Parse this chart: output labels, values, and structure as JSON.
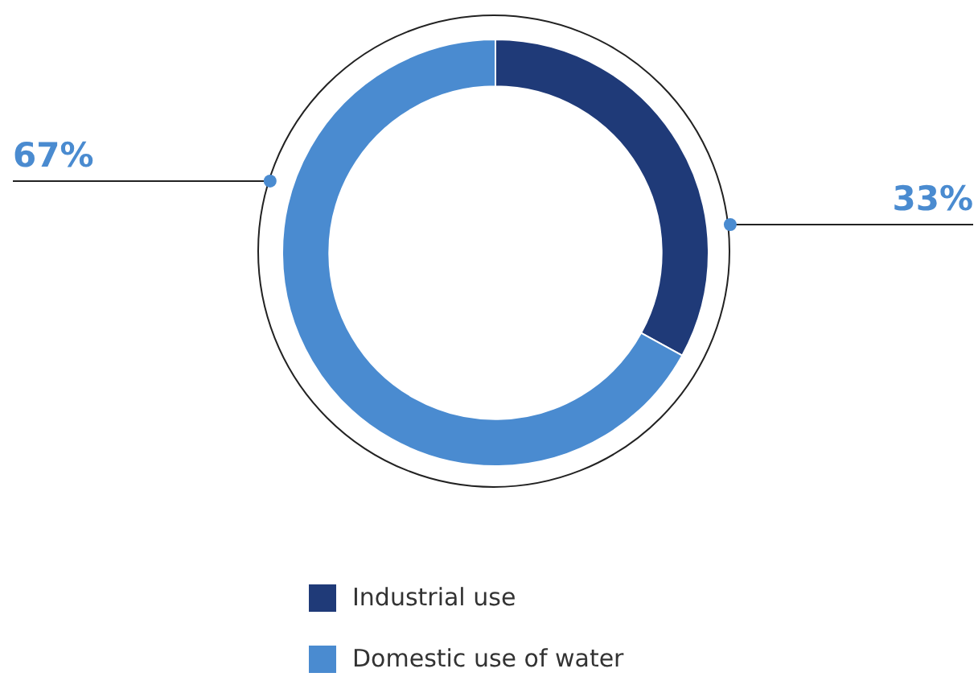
{
  "chart_data": {
    "type": "donut",
    "categories": [
      "Industrial use",
      "Domestic use of water"
    ],
    "values": [
      33,
      67
    ],
    "colors": [
      "#1f3a78",
      "#4a8bd0"
    ],
    "value_labels": [
      "33%",
      "67%"
    ],
    "legend": "bottom"
  }
}
